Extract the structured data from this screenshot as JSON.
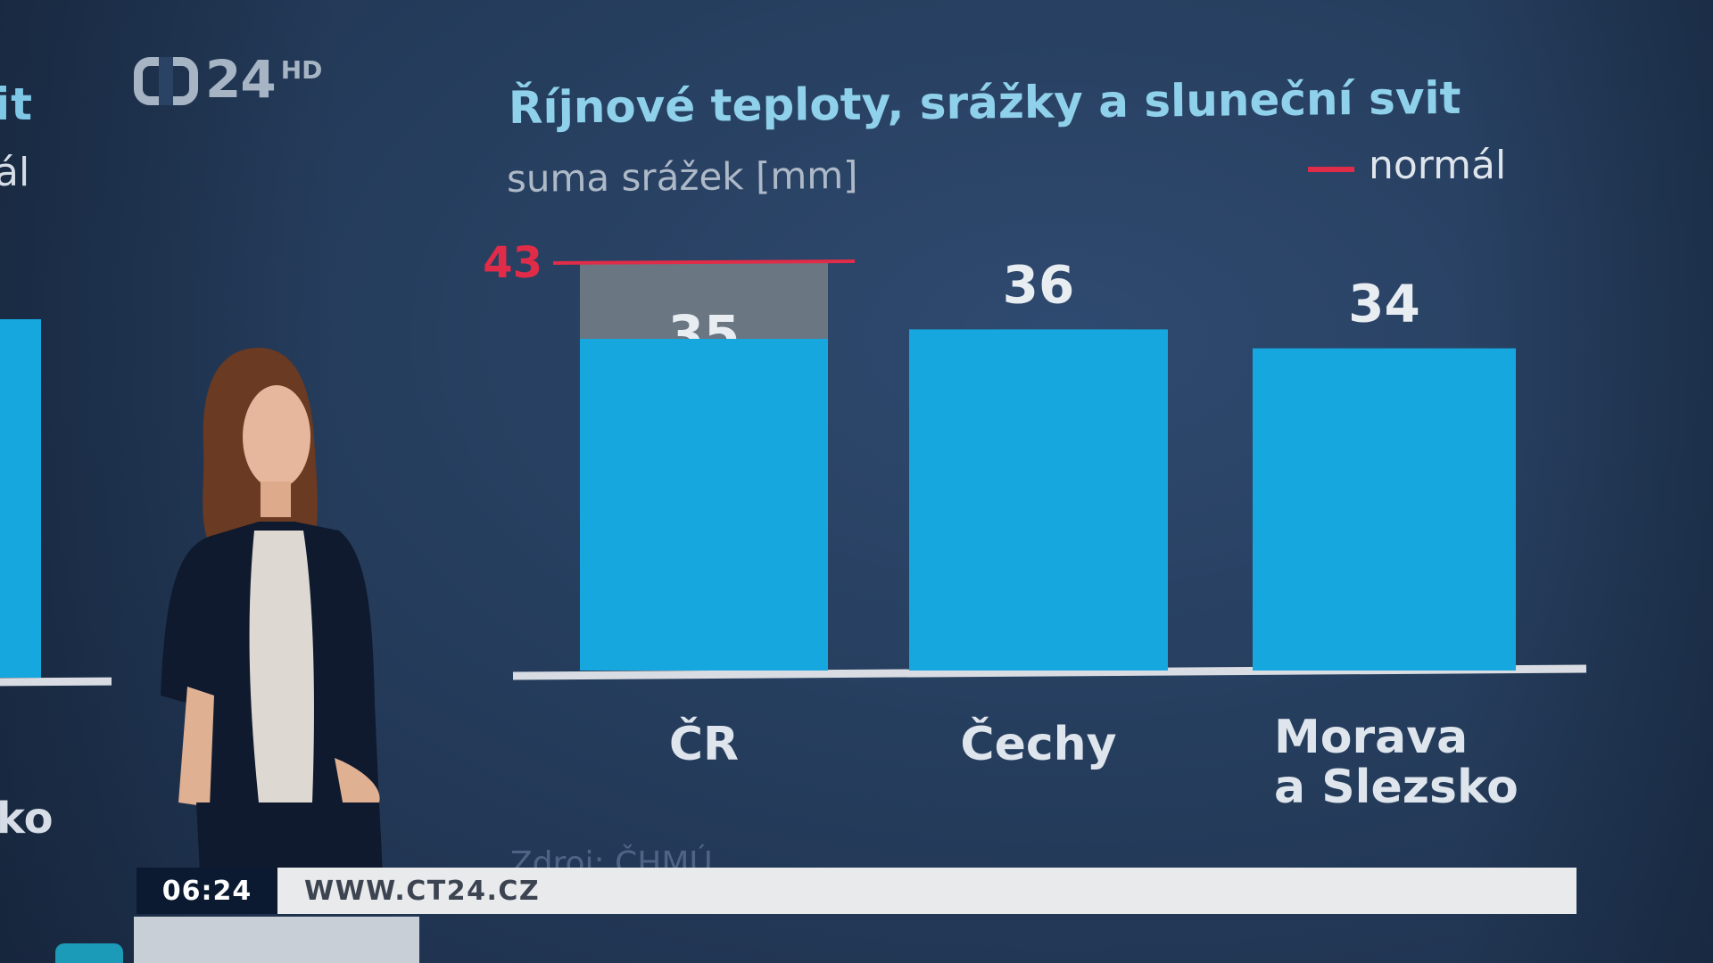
{
  "logo": {
    "number": "24",
    "hd": "HD"
  },
  "left_panel": {
    "title_fragment": "it",
    "normal_fragment": "ál",
    "label_fragment": "ko"
  },
  "chart": {
    "title": "Říjnové teploty, srážky a sluneční svit",
    "subtitle": "suma srážek [mm]",
    "legend_label": "normál",
    "colors": {
      "bar": "#16a7de",
      "normal_fill": "#6b7683",
      "normal_line": "#e02c48",
      "axis": "#d9dde3"
    }
  },
  "chart_data": {
    "type": "bar",
    "categories": [
      "ČR",
      "Čechy",
      "Morava a Slezsko"
    ],
    "category_lines": [
      [
        "ČR"
      ],
      [
        "Čechy"
      ],
      [
        "Morava",
        "a Slezsko"
      ]
    ],
    "values": [
      35,
      36,
      34
    ],
    "normal": {
      "category": "ČR",
      "value": 43
    },
    "title": "Říjnové teploty, srážky a sluneční svit",
    "ylabel": "suma srážek [mm]",
    "legend": [
      "normál"
    ],
    "ylim": [
      0,
      43
    ],
    "grid": false,
    "legend_position": "top-right"
  },
  "source_fragment": "Zdroj: ČHMÚ",
  "ticker": {
    "time": "06:24",
    "text": "WWW.CT24.CZ"
  }
}
